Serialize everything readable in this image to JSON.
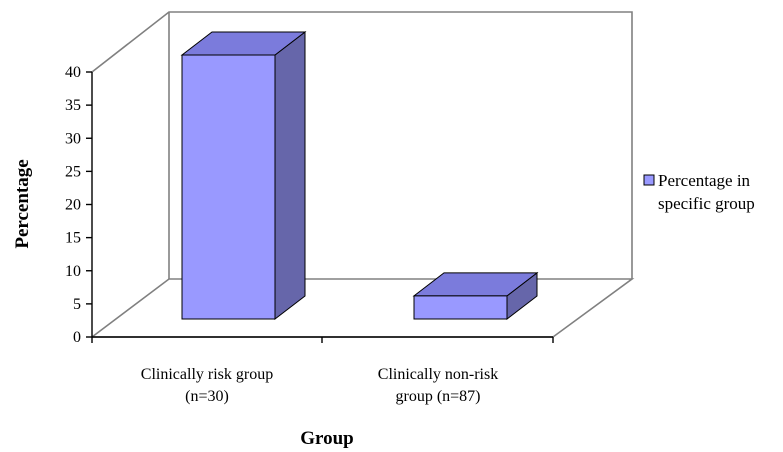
{
  "chart_data": {
    "type": "bar",
    "categories": [
      "Clinically risk group\n(n=30)",
      "Clinically non-risk\ngroup (n=87)"
    ],
    "series": [
      {
        "name": "Percentage in specific group",
        "values": [
          40,
          3.5
        ]
      }
    ],
    "xlabel": "Group",
    "ylabel": "Percentage",
    "ylim": [
      0,
      40
    ],
    "yticks": [
      0,
      5,
      10,
      15,
      20,
      25,
      30,
      35,
      40
    ],
    "grid": false,
    "three_d": true,
    "legend_position": "right",
    "colors": {
      "bar_front": "#9999ff",
      "bar_side": "#6666aa",
      "bar_top": "#7b7bdc",
      "frame": "#808080"
    }
  },
  "legend": {
    "line1": "Percentage in",
    "line2": "specific group"
  }
}
